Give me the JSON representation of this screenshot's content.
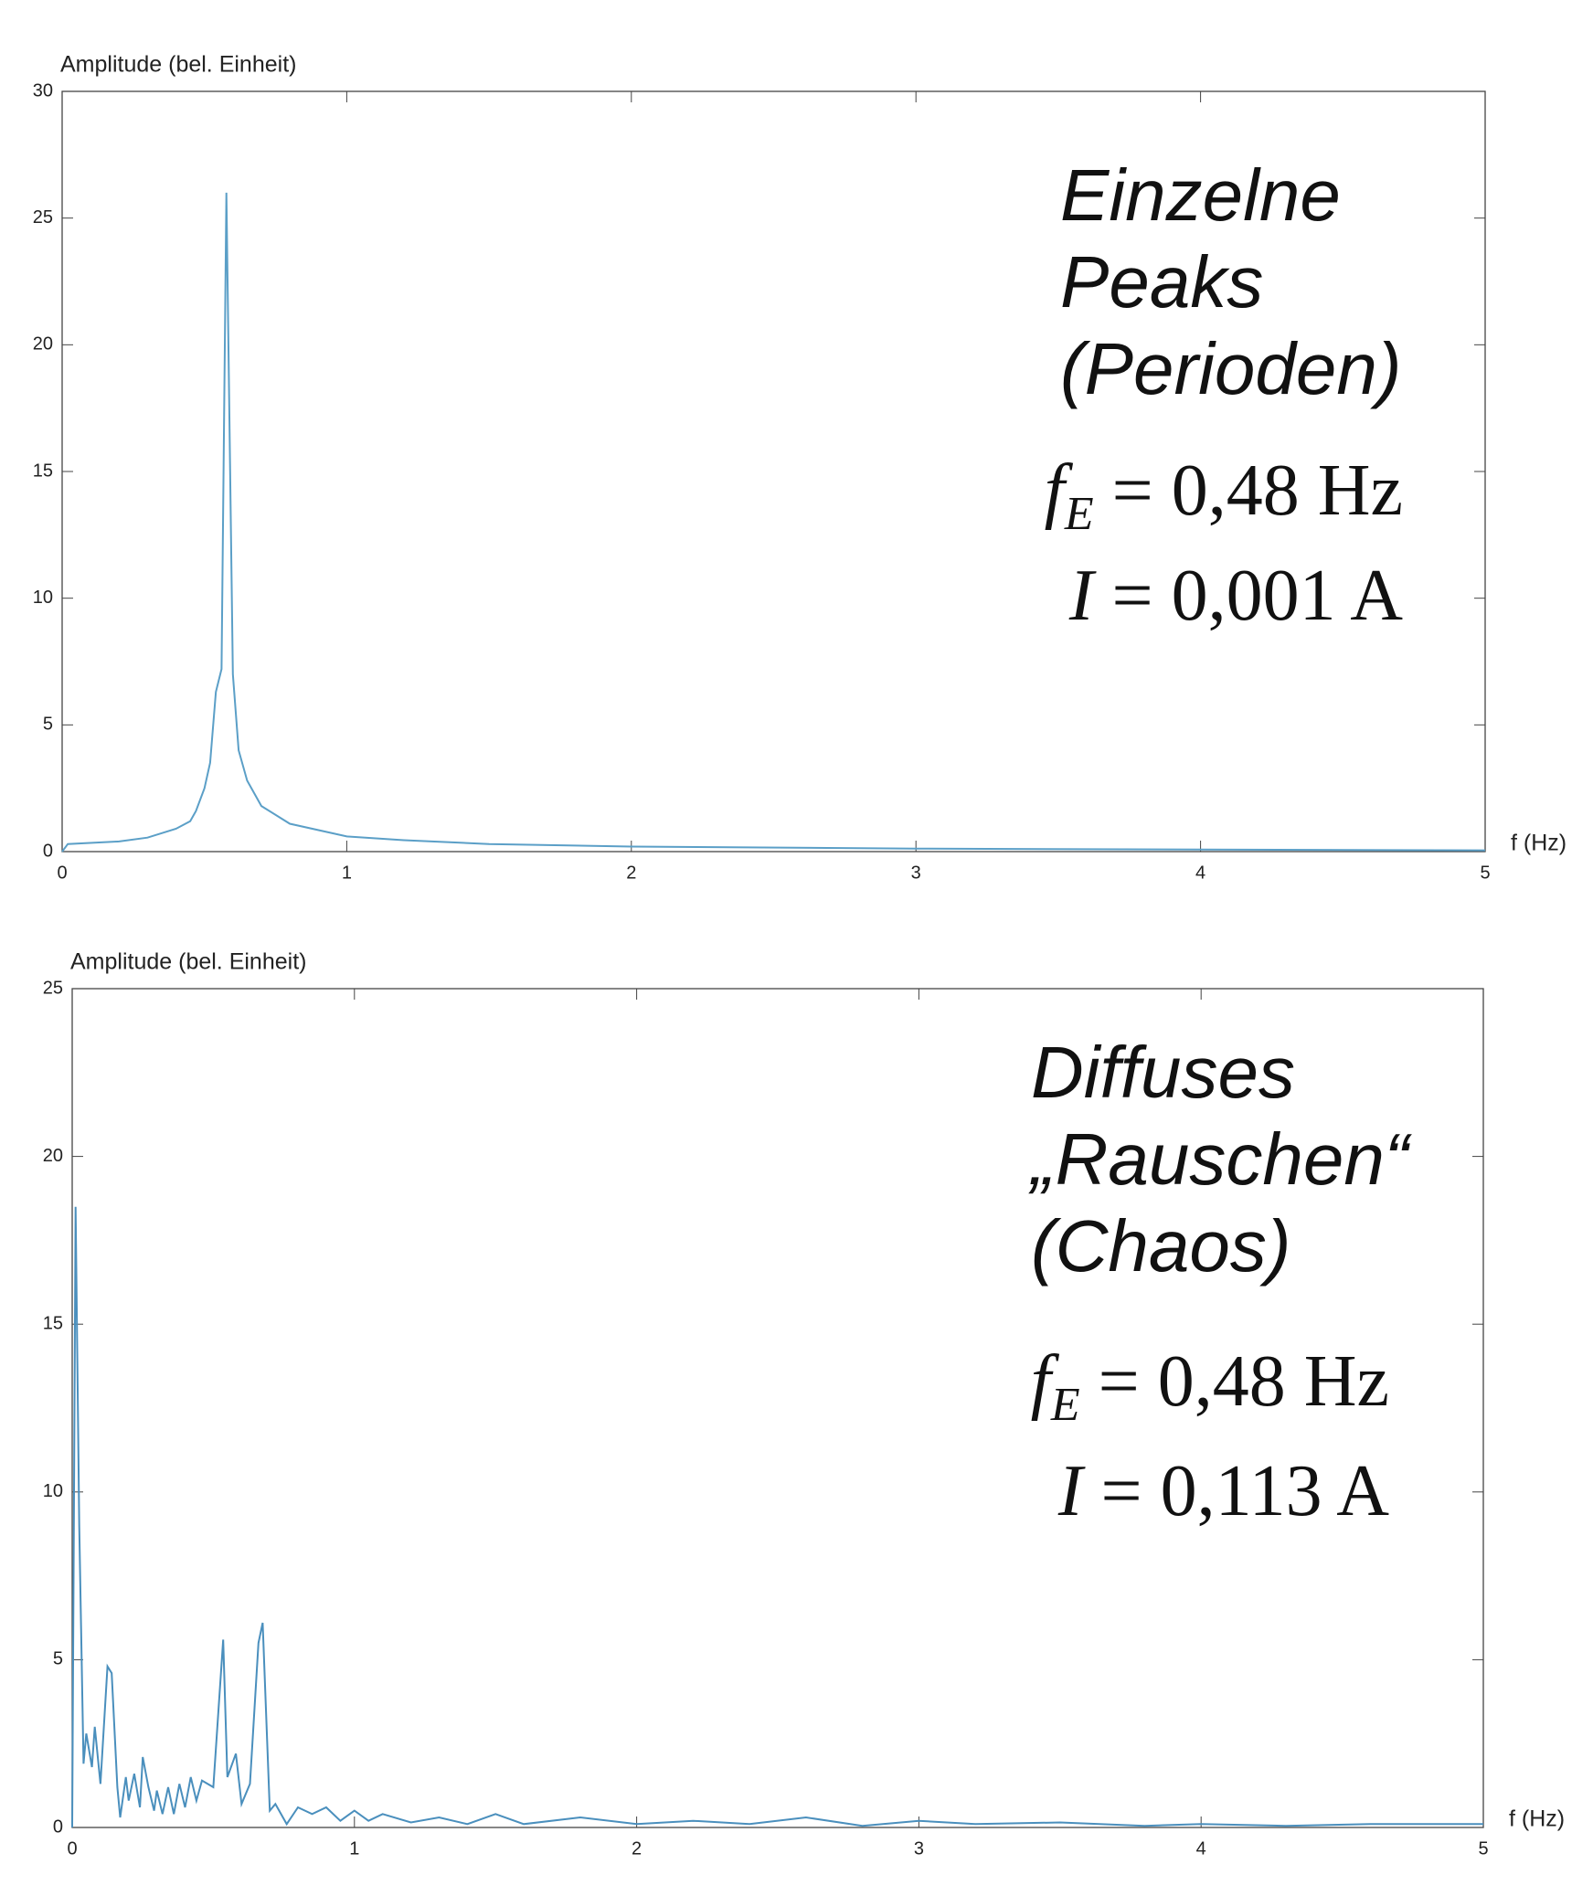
{
  "chart_data": [
    {
      "type": "line",
      "ylabel": "Amplitude (bel. Einheit)",
      "xlabel": "f (Hz)",
      "xlim": [
        0,
        5
      ],
      "xticks": [
        0,
        1,
        2,
        3,
        4,
        5
      ],
      "ylim": [
        0,
        30
      ],
      "yticks": [
        0,
        5,
        10,
        15,
        20,
        25,
        30
      ],
      "series": [
        {
          "color": "#5b9fc7",
          "x": [
            0,
            0.02,
            0.2,
            0.3,
            0.4,
            0.45,
            0.47,
            0.5,
            0.52,
            0.54,
            0.56,
            0.577,
            0.6,
            0.62,
            0.65,
            0.7,
            0.8,
            1.0,
            1.2,
            1.5,
            2,
            3,
            4,
            5
          ],
          "values": [
            0,
            0.3,
            0.4,
            0.55,
            0.9,
            1.2,
            1.6,
            2.5,
            3.5,
            6.3,
            7.2,
            26,
            7,
            4,
            2.8,
            1.8,
            1.1,
            0.6,
            0.45,
            0.3,
            0.2,
            0.12,
            0.08,
            0.05
          ]
        }
      ],
      "heading": [
        "Einzelne",
        "Peaks",
        "(Perioden)"
      ],
      "equations": [
        {
          "symbol": "f",
          "subscript": "E",
          "rest": " = 0,48 Hz"
        },
        {
          "symbol": "I",
          "rest": " = 0,001 A"
        }
      ]
    },
    {
      "type": "line",
      "ylabel": "Amplitude (bel. Einheit)",
      "xlabel": "f (Hz)",
      "xlim": [
        0,
        5
      ],
      "xticks": [
        0,
        1,
        2,
        3,
        4,
        5
      ],
      "ylim": [
        0,
        25
      ],
      "yticks": [
        0,
        5,
        10,
        15,
        20,
        25
      ],
      "series": [
        {
          "color": "#4a8fbd",
          "x": [
            0,
            0.012,
            0.025,
            0.04,
            0.05,
            0.07,
            0.08,
            0.1,
            0.125,
            0.14,
            0.16,
            0.17,
            0.19,
            0.2,
            0.22,
            0.24,
            0.25,
            0.27,
            0.29,
            0.3,
            0.32,
            0.34,
            0.36,
            0.38,
            0.4,
            0.42,
            0.44,
            0.46,
            0.5,
            0.535,
            0.55,
            0.58,
            0.6,
            0.63,
            0.66,
            0.675,
            0.7,
            0.72,
            0.76,
            0.8,
            0.85,
            0.9,
            0.95,
            1.0,
            1.05,
            1.1,
            1.2,
            1.3,
            1.4,
            1.5,
            1.6,
            1.8,
            2.0,
            2.2,
            2.4,
            2.6,
            2.8,
            3.0,
            3.2,
            3.5,
            3.8,
            4.0,
            4.3,
            4.6,
            5.0
          ],
          "values": [
            0,
            18.5,
            9,
            1.9,
            2.8,
            1.8,
            3,
            1.3,
            4.8,
            4.6,
            1.2,
            0.3,
            1.5,
            0.8,
            1.6,
            0.6,
            2.1,
            1.2,
            0.5,
            1.1,
            0.4,
            1.2,
            0.4,
            1.3,
            0.6,
            1.5,
            0.8,
            1.4,
            1.2,
            5.6,
            1.5,
            2.2,
            0.7,
            1.3,
            5.5,
            6.1,
            0.5,
            0.7,
            0.1,
            0.6,
            0.4,
            0.6,
            0.2,
            0.5,
            0.2,
            0.4,
            0.15,
            0.3,
            0.1,
            0.4,
            0.1,
            0.3,
            0.1,
            0.2,
            0.1,
            0.3,
            0.05,
            0.2,
            0.1,
            0.15,
            0.05,
            0.1,
            0.05,
            0.1,
            0.1
          ]
        }
      ],
      "heading": [
        "Diffuses",
        "„Rauschen“",
        "(Chaos)"
      ],
      "equations": [
        {
          "symbol": "f",
          "subscript": "E",
          "rest": " = 0,48 Hz"
        },
        {
          "symbol": "I",
          "rest": " = 0,113 A"
        }
      ]
    }
  ]
}
